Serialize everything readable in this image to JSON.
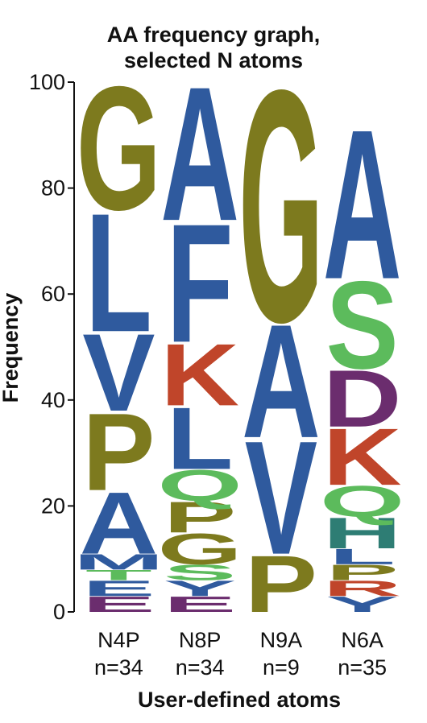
{
  "chart_data": {
    "type": "sequence_logo",
    "title": "AA frequency graph,",
    "subtitle": "selected N atoms",
    "xlabel": "User-defined atoms",
    "ylabel": "Frequency",
    "ylim": [
      0,
      100
    ],
    "yticks": [
      "0",
      "20",
      "40",
      "60",
      "80",
      "100"
    ],
    "categories": [
      "N4P",
      "N8P",
      "N9A",
      "N6A"
    ],
    "sublabels": [
      "n=34",
      "n=34",
      "n=9",
      "n=35"
    ],
    "colors": {
      "olive": "#7d7a1e",
      "blue": "#2f5a9e",
      "green": "#5cbb5c",
      "red": "#c0452a",
      "purple": "#6b2d6e",
      "teal": "#2e7d74"
    },
    "stacks": [
      {
        "category": "N4P",
        "letters": [
          {
            "letter": "E",
            "freq": 3,
            "color": "purple"
          },
          {
            "letter": "E",
            "freq": 3,
            "color": "blue"
          },
          {
            "letter": "T",
            "freq": 2,
            "color": "green"
          },
          {
            "letter": "M",
            "freq": 3,
            "color": "blue"
          },
          {
            "letter": "A",
            "freq": 12,
            "color": "blue"
          },
          {
            "letter": "P",
            "freq": 15,
            "color": "olive"
          },
          {
            "letter": "V",
            "freq": 15,
            "color": "blue"
          },
          {
            "letter": "L",
            "freq": 23,
            "color": "blue"
          },
          {
            "letter": "G",
            "freq": 24,
            "color": "olive"
          }
        ]
      },
      {
        "category": "N8P",
        "letters": [
          {
            "letter": "E",
            "freq": 3,
            "color": "purple"
          },
          {
            "letter": "Y",
            "freq": 3,
            "color": "blue"
          },
          {
            "letter": "S",
            "freq": 3,
            "color": "green"
          },
          {
            "letter": "G",
            "freq": 6,
            "color": "olive"
          },
          {
            "letter": "P",
            "freq": 6,
            "color": "olive"
          },
          {
            "letter": "Q",
            "freq": 6,
            "color": "green"
          },
          {
            "letter": "L",
            "freq": 12,
            "color": "blue"
          },
          {
            "letter": "K",
            "freq": 12,
            "color": "red"
          },
          {
            "letter": "F",
            "freq": 23,
            "color": "blue"
          },
          {
            "letter": "A",
            "freq": 26,
            "color": "blue"
          }
        ]
      },
      {
        "category": "N9A",
        "letters": [
          {
            "letter": "P",
            "freq": 11,
            "color": "olive"
          },
          {
            "letter": "V",
            "freq": 22,
            "color": "blue"
          },
          {
            "letter": "A",
            "freq": 22,
            "color": "blue"
          },
          {
            "letter": "G",
            "freq": 45,
            "color": "olive"
          }
        ]
      },
      {
        "category": "N6A",
        "letters": [
          {
            "letter": "Y",
            "freq": 3,
            "color": "blue"
          },
          {
            "letter": "R",
            "freq": 3,
            "color": "red"
          },
          {
            "letter": "P",
            "freq": 3,
            "color": "olive"
          },
          {
            "letter": "L",
            "freq": 3,
            "color": "blue"
          },
          {
            "letter": "H",
            "freq": 6,
            "color": "teal"
          },
          {
            "letter": "Q",
            "freq": 6,
            "color": "green"
          },
          {
            "letter": "K",
            "freq": 11,
            "color": "red"
          },
          {
            "letter": "D",
            "freq": 11,
            "color": "purple"
          },
          {
            "letter": "S",
            "freq": 17,
            "color": "green"
          },
          {
            "letter": "A",
            "freq": 29,
            "color": "blue"
          }
        ]
      }
    ]
  }
}
